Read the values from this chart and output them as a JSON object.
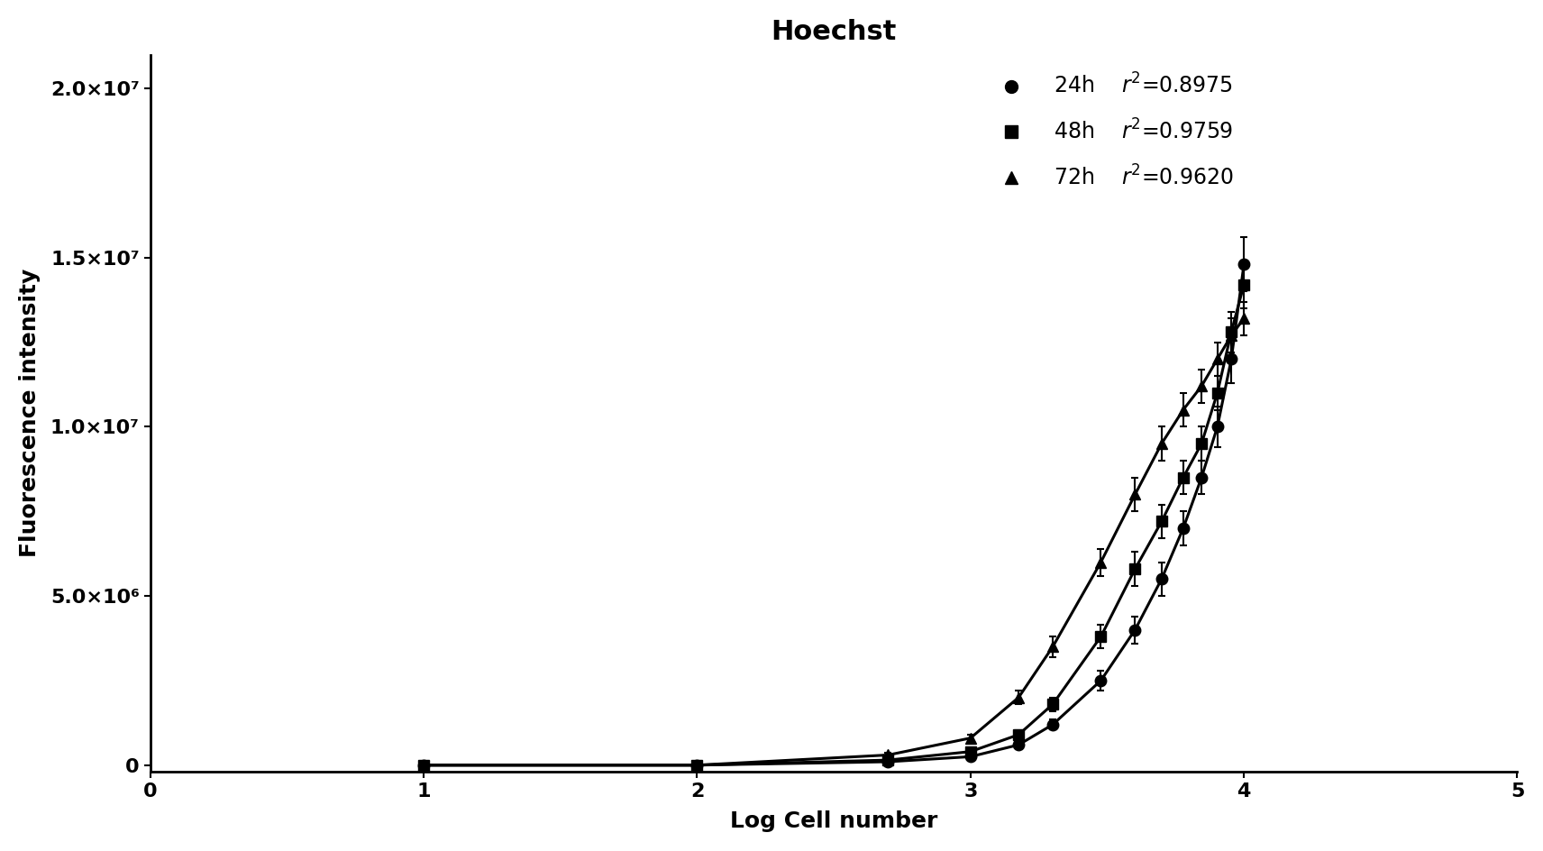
{
  "title": "Hoechst",
  "xlabel": "Log Cell number",
  "ylabel": "Fluorescence intensity",
  "xlim": [
    0,
    5
  ],
  "ylim": [
    -200000.0,
    21000000.0
  ],
  "yticks": [
    0,
    5000000,
    10000000,
    15000000,
    20000000
  ],
  "ytick_labels": [
    "0",
    "5.0×10⁶",
    "1.0×10⁷",
    "1.5×10⁷",
    "2.0×10⁷"
  ],
  "xticks": [
    0,
    1,
    2,
    3,
    4,
    5
  ],
  "series": [
    {
      "label": "24h",
      "r2": "0.8975",
      "marker": "o",
      "x": [
        1.0,
        2.0,
        2.699,
        3.0,
        3.176,
        3.301,
        3.477,
        3.602,
        3.699,
        3.778,
        3.845,
        3.903,
        3.954,
        4.0
      ],
      "y": [
        0,
        0,
        100000.0,
        250000.0,
        600000.0,
        1200000.0,
        2500000.0,
        4000000.0,
        5500000.0,
        7000000.0,
        8500000.0,
        10000000.0,
        12000000.0,
        14800000.0
      ],
      "yerr": [
        50000.0,
        30000.0,
        50000.0,
        50000.0,
        100000.0,
        150000.0,
        300000.0,
        400000.0,
        500000.0,
        500000.0,
        500000.0,
        600000.0,
        700000.0,
        800000.0
      ]
    },
    {
      "label": "48h",
      "r2": "0.9759",
      "marker": "s",
      "x": [
        1.0,
        2.0,
        2.699,
        3.0,
        3.176,
        3.301,
        3.477,
        3.602,
        3.699,
        3.778,
        3.845,
        3.903,
        3.954,
        4.0
      ],
      "y": [
        0,
        0,
        150000.0,
        400000.0,
        900000.0,
        1800000.0,
        3800000.0,
        5800000.0,
        7200000.0,
        8500000.0,
        9500000.0,
        11000000.0,
        12800000.0,
        14200000.0
      ],
      "yerr": [
        50000.0,
        30000.0,
        50000.0,
        60000.0,
        120000.0,
        200000.0,
        350000.0,
        500000.0,
        500000.0,
        500000.0,
        500000.0,
        500000.0,
        600000.0,
        700000.0
      ]
    },
    {
      "label": "72h",
      "r2": "0.9620",
      "marker": "^",
      "x": [
        1.0,
        2.0,
        2.699,
        3.0,
        3.176,
        3.301,
        3.477,
        3.602,
        3.699,
        3.778,
        3.845,
        3.903,
        3.954,
        4.0
      ],
      "y": [
        0,
        0,
        300000.0,
        800000.0,
        2000000.0,
        3500000.0,
        6000000.0,
        8000000.0,
        9500000.0,
        10500000.0,
        11200000.0,
        12000000.0,
        12700000.0,
        13200000.0
      ],
      "yerr": [
        50000.0,
        30000.0,
        60000.0,
        100000.0,
        200000.0,
        300000.0,
        400000.0,
        500000.0,
        500000.0,
        500000.0,
        500000.0,
        500000.0,
        500000.0,
        500000.0
      ]
    }
  ],
  "background_color": "#ffffff",
  "line_color": "#000000",
  "marker_color": "#000000",
  "title_fontsize": 22,
  "label_fontsize": 18,
  "tick_fontsize": 16,
  "legend_fontsize": 17,
  "marker_size": 9,
  "line_width": 2.2
}
